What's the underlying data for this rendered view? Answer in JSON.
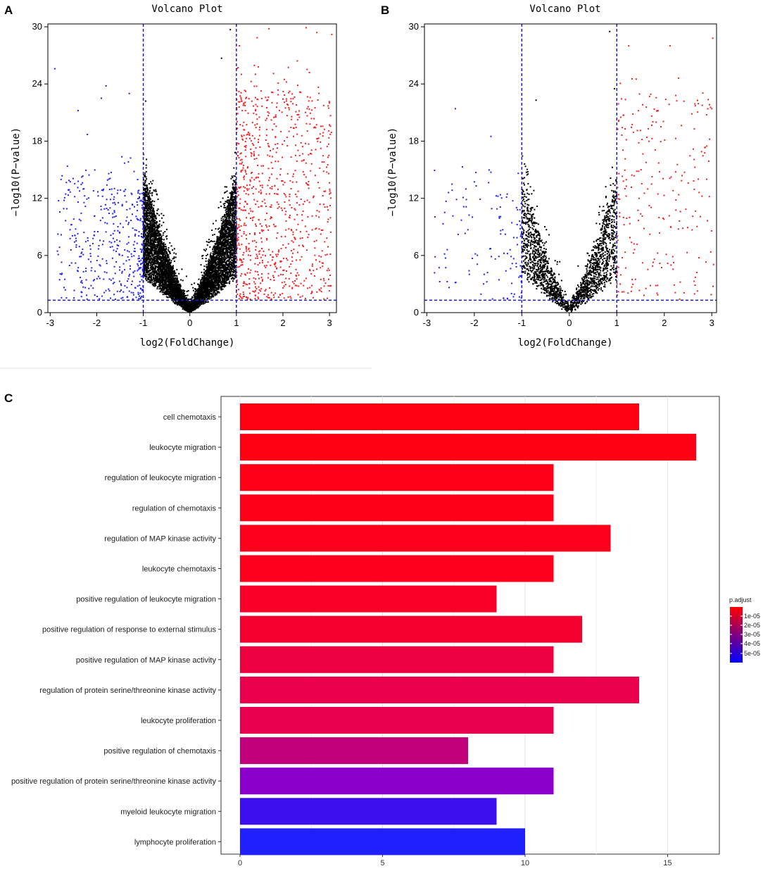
{
  "panels": {
    "a": "A",
    "b": "B",
    "c": "C"
  },
  "chart_data": [
    {
      "id": "A",
      "type": "scatter",
      "title": "Volcano Plot",
      "xlabel": "log2(FoldChange)",
      "ylabel": "−log10(P−value)",
      "xlim": [
        -3.05,
        3.15
      ],
      "ylim": [
        0,
        30.3
      ],
      "xticks": [
        -3,
        -2,
        -1,
        0,
        1,
        2,
        3
      ],
      "yticks": [
        0,
        6,
        12,
        18,
        24,
        30
      ],
      "thresholds": {
        "x": [
          -1,
          1
        ],
        "y": 1.3
      },
      "colors": {
        "down": "#2222ee",
        "ns": "#000000",
        "up": "#ee2222",
        "threshold": "#1a1acc"
      },
      "counts": {
        "down": 420,
        "ns": 6500,
        "up": 900
      },
      "highlight_points": [
        {
          "x": -2.9,
          "y": 25.6,
          "group": "down"
        },
        {
          "x": -2.4,
          "y": 21.2,
          "group": "down"
        },
        {
          "x": -1.9,
          "y": 22.5,
          "group": "down"
        },
        {
          "x": -1.8,
          "y": 23.8,
          "group": "down"
        },
        {
          "x": -1.3,
          "y": 23.0,
          "group": "down"
        },
        {
          "x": -2.2,
          "y": 18.7,
          "group": "down"
        },
        {
          "x": -0.95,
          "y": 22.2,
          "group": "ns"
        },
        {
          "x": 0.87,
          "y": 29.7,
          "group": "ns"
        },
        {
          "x": 0.68,
          "y": 26.7,
          "group": "ns"
        },
        {
          "x": 1.7,
          "y": 29.8,
          "group": "up"
        },
        {
          "x": 2.5,
          "y": 29.9,
          "group": "up"
        },
        {
          "x": 2.73,
          "y": 29.4,
          "group": "up"
        },
        {
          "x": 3.05,
          "y": 29.2,
          "group": "up"
        },
        {
          "x": 3.0,
          "y": 22.0,
          "group": "up"
        }
      ]
    },
    {
      "id": "B",
      "type": "scatter",
      "title": "Volcano Plot",
      "xlabel": "log2(FoldChange)",
      "ylabel": "−log10(P−value)",
      "xlim": [
        -3.05,
        3.1
      ],
      "ylim": [
        0,
        30.3
      ],
      "xticks": [
        -3,
        -2,
        -1,
        0,
        1,
        2,
        3
      ],
      "yticks": [
        0,
        6,
        12,
        18,
        24,
        30
      ],
      "thresholds": {
        "x": [
          -1,
          1
        ],
        "y": 1.3
      },
      "colors": {
        "down": "#2222ee",
        "ns": "#000000",
        "up": "#ee2222",
        "threshold": "#1a1acc"
      },
      "counts": {
        "down": 120,
        "ns": 1900,
        "up": 240
      },
      "highlight_points": [
        {
          "x": -2.4,
          "y": 21.4,
          "group": "down"
        },
        {
          "x": -1.65,
          "y": 18.5,
          "group": "down"
        },
        {
          "x": -0.7,
          "y": 22.3,
          "group": "ns"
        },
        {
          "x": 0.85,
          "y": 29.5,
          "group": "ns"
        },
        {
          "x": 0.95,
          "y": 23.5,
          "group": "ns"
        },
        {
          "x": 1.25,
          "y": 28.0,
          "group": "up"
        },
        {
          "x": 2.12,
          "y": 28.0,
          "group": "up"
        },
        {
          "x": 3.02,
          "y": 28.8,
          "group": "up"
        },
        {
          "x": 2.3,
          "y": 24.6,
          "group": "up"
        },
        {
          "x": 3.0,
          "y": 21.4,
          "group": "up"
        }
      ]
    },
    {
      "id": "C",
      "type": "bar",
      "orientation": "horizontal",
      "title": "",
      "xlabel": "",
      "ylabel": "",
      "xlim": [
        0,
        16.9
      ],
      "xticks": [
        0,
        5,
        10,
        15
      ],
      "categories": [
        "cell chemotaxis",
        "leukocyte migration",
        "regulation of leukocyte migration",
        "regulation of chemotaxis",
        "regulation of MAP kinase activity",
        "leukocyte chemotaxis",
        "positive regulation of leukocyte migration",
        "positive regulation of response to external stimulus",
        "positive regulation of MAP kinase activity",
        "regulation of protein serine/threonine kinase activity",
        "leukocyte proliferation",
        "positive regulation of chemotaxis",
        "positive regulation of protein serine/threonine kinase activity",
        "myeloid leukocyte migration",
        "lymphocyte proliferation"
      ],
      "values": [
        14,
        16,
        11,
        11,
        13,
        11,
        9,
        12,
        11,
        14,
        11,
        8,
        11,
        9,
        10
      ],
      "p_adjust": [
        5e-07,
        7e-07,
        1.5e-06,
        1.8e-06,
        2e-06,
        2.2e-06,
        3.5e-06,
        4.5e-06,
        1.2e-05,
        1.4e-05,
        1.4e-05,
        2.9e-05,
        4.3e-05,
        5.8e-05,
        6e-05
      ],
      "bar_colors": [
        "#ff0010",
        "#ff0012",
        "#ff0016",
        "#fe0018",
        "#fd001c",
        "#fc001e",
        "#f80028",
        "#f4002e",
        "#ed0040",
        "#ea004a",
        "#e8004e",
        "#c2007a",
        "#8c00cc",
        "#3c10ee",
        "#2020ff"
      ],
      "legend": {
        "title": "p.adjust",
        "labels": [
          "1e-05",
          "2e-05",
          "3e-05",
          "4e-05",
          "5e-05"
        ],
        "gradient_top": "#ff0000",
        "gradient_bottom": "#0000ff",
        "position": "right"
      }
    }
  ]
}
